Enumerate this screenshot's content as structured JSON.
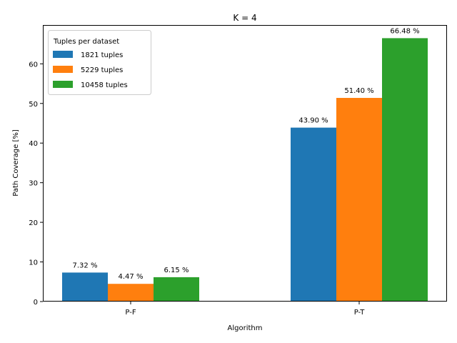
{
  "chart_data": {
    "type": "bar",
    "title": "K = 4",
    "xlabel": "Algorithm",
    "ylabel": "Path Coverage [%]",
    "categories": [
      "P-F",
      "P-T"
    ],
    "ylim": [
      0,
      69.8
    ],
    "yticks": [
      0,
      10,
      20,
      30,
      40,
      50,
      60
    ],
    "grid": false,
    "legend": {
      "title": "Tuples per dataset",
      "placement": "top-left"
    },
    "series": [
      {
        "name": "1821 tuples",
        "color": "#1f77b4",
        "values": [
          7.32,
          43.9
        ],
        "labels": [
          "7.32 %",
          "43.90 %"
        ]
      },
      {
        "name": "5229 tuples",
        "color": "#ff7f0e",
        "values": [
          4.47,
          51.4
        ],
        "labels": [
          "4.47 %",
          "51.40 %"
        ]
      },
      {
        "name": "10458 tuples",
        "color": "#2ca02c",
        "values": [
          6.15,
          66.48
        ],
        "labels": [
          "6.15 %",
          "66.48 %"
        ]
      }
    ]
  }
}
